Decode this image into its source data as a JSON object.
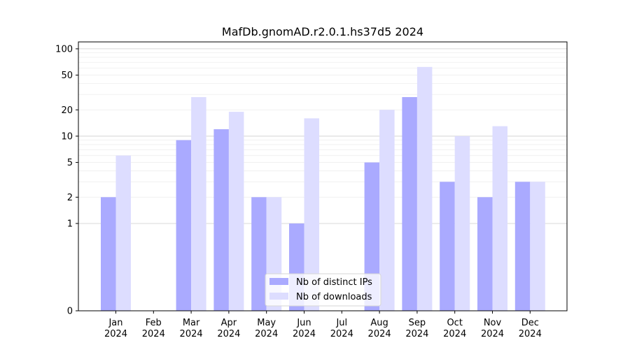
{
  "chart_data": {
    "type": "bar",
    "title": "MafDb.gnomAD.r2.0.1.hs37d5 2024",
    "xlabel": "",
    "ylabel": "",
    "yscale": "symlog",
    "categories": [
      [
        "Jan",
        "2024"
      ],
      [
        "Feb",
        "2024"
      ],
      [
        "Mar",
        "2024"
      ],
      [
        "Apr",
        "2024"
      ],
      [
        "May",
        "2024"
      ],
      [
        "Jun",
        "2024"
      ],
      [
        "Jul",
        "2024"
      ],
      [
        "Aug",
        "2024"
      ],
      [
        "Sep",
        "2024"
      ],
      [
        "Oct",
        "2024"
      ],
      [
        "Nov",
        "2024"
      ],
      [
        "Dec",
        "2024"
      ]
    ],
    "yticks": [
      0,
      1,
      2,
      5,
      10,
      20,
      50,
      100
    ],
    "series": [
      {
        "name": "Nb of distinct IPs",
        "color": "#aaaaff",
        "values": [
          2,
          0,
          9,
          12,
          2,
          1,
          0,
          5,
          28,
          3,
          2,
          3
        ]
      },
      {
        "name": "Nb of downloads",
        "color": "#ddddff",
        "values": [
          6,
          0,
          28,
          19,
          2,
          16,
          0,
          20,
          62,
          10,
          13,
          3
        ]
      }
    ],
    "ylim": [
      0,
      120
    ],
    "grid": true,
    "legend_position": "lower-center"
  }
}
